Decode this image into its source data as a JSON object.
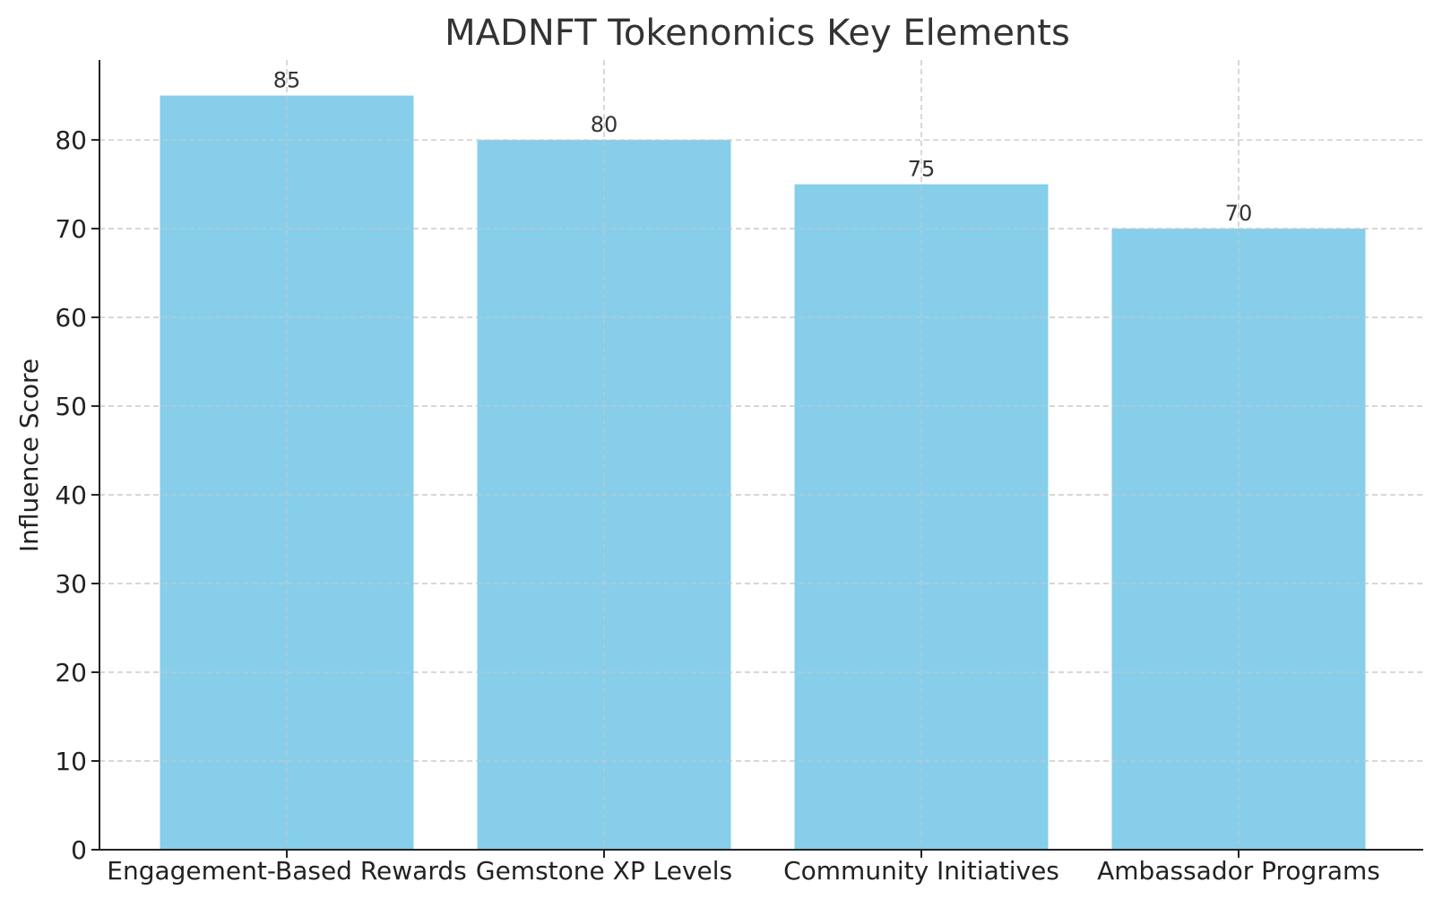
{
  "chart_data": {
    "type": "bar",
    "title": "MADNFT Tokenomics Key Elements",
    "xlabel": "",
    "ylabel": "Influence Score",
    "categories": [
      "Engagement-Based Rewards",
      "Gemstone XP Levels",
      "Community Initiatives",
      "Ambassador Programs"
    ],
    "values": [
      85,
      80,
      75,
      70
    ],
    "data_labels": [
      "85",
      "80",
      "75",
      "70"
    ],
    "yticks": [
      0,
      10,
      20,
      30,
      40,
      50,
      60,
      70,
      80
    ],
    "ylim": [
      0,
      89
    ],
    "grid": true,
    "grid_style": "dashed",
    "bar_color": "#87CEEB",
    "axis_color": "#222222",
    "grid_color": "#c8c8c8"
  }
}
